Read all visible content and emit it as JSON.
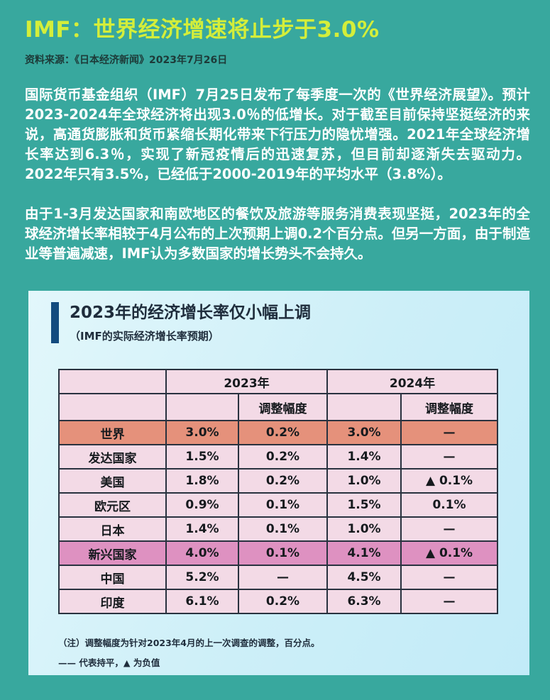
{
  "article": {
    "title": "IMF：世界经济增速将止步于3.0%",
    "source": "资料来源：《日本经济新闻》2023年7月26日",
    "paragraphs": [
      "国际货币基金组织（IMF）7月25日发布了每季度一次的《世界经济展望》。预计2023-2024年全球经济将出现3.0％的低增长。对于截至目前保持坚挺经济的来说，高通货膨胀和货币紧缩长期化带来下行压力的隐忧增强。2021年全球经济增长率达到6.3％，实现了新冠疫情后的迅速复苏，但目前却逐渐失去驱动力。2022年只有3.5%，已经低于2000-2019年的平均水平（3.8%）。",
      "由于1-3月发达国家和南欧地区的餐饮及旅游等服务消费表现坚挺，2023年的全球经济增长率相较于4月公布的上次预期上调0.2个百分点。但另一方面，由于制造业等普遍减速，IMF认为多数国家的增长势头不会持久。"
    ]
  },
  "card": {
    "title": "2023年的经济增长率仅小幅上调",
    "subtitle": "（IMF的实际经济增长率预期）",
    "note1": "（注）调整幅度为针对2023年4月的上一次调查的调整，百分点。",
    "note2": "—— 代表持平，▲ 为负值"
  },
  "chart_data": {
    "type": "table",
    "title": "2023年的经济增长率仅小幅上调",
    "subtitle": "（IMF的实际经济增长率预期）",
    "column_groups": [
      "2023年",
      "2024年"
    ],
    "adjustment_header": "调整幅度",
    "rows": [
      {
        "label": "世界",
        "values": [
          "3.0%",
          "0.2%",
          "3.0%",
          "—"
        ],
        "highlight": "world"
      },
      {
        "label": "发达国家",
        "values": [
          "1.5%",
          "0.2%",
          "1.4%",
          "—"
        ],
        "highlight": null
      },
      {
        "label": "美国",
        "values": [
          "1.8%",
          "0.2%",
          "1.0%",
          "▲ 0.1%"
        ],
        "highlight": null
      },
      {
        "label": "欧元区",
        "values": [
          "0.9%",
          "0.1%",
          "1.5%",
          "0.1%"
        ],
        "highlight": null
      },
      {
        "label": "日本",
        "values": [
          "1.4%",
          "0.1%",
          "1.0%",
          "—"
        ],
        "highlight": null
      },
      {
        "label": "新兴国家",
        "values": [
          "4.0%",
          "0.1%",
          "4.1%",
          "▲ 0.1%"
        ],
        "highlight": "emerging"
      },
      {
        "label": "中国",
        "values": [
          "5.2%",
          "—",
          "4.5%",
          "—"
        ],
        "highlight": null
      },
      {
        "label": "印度",
        "values": [
          "6.1%",
          "0.2%",
          "6.3%",
          "—"
        ],
        "highlight": null
      }
    ],
    "legend": {
      "dash_meaning": "代表持平",
      "triangle_meaning": "为负值"
    }
  },
  "colors": {
    "page_background": "#38A89E",
    "headline": "#D4EE3A",
    "body_text": "#FFFFFF",
    "card_background": "#CDEFF8",
    "accent_bar": "#134B7E",
    "table_cell_pink": "#F3DAE6",
    "world_row": "#E5917B",
    "emerging_row": "#DE91C1",
    "table_border": "#29323F"
  }
}
